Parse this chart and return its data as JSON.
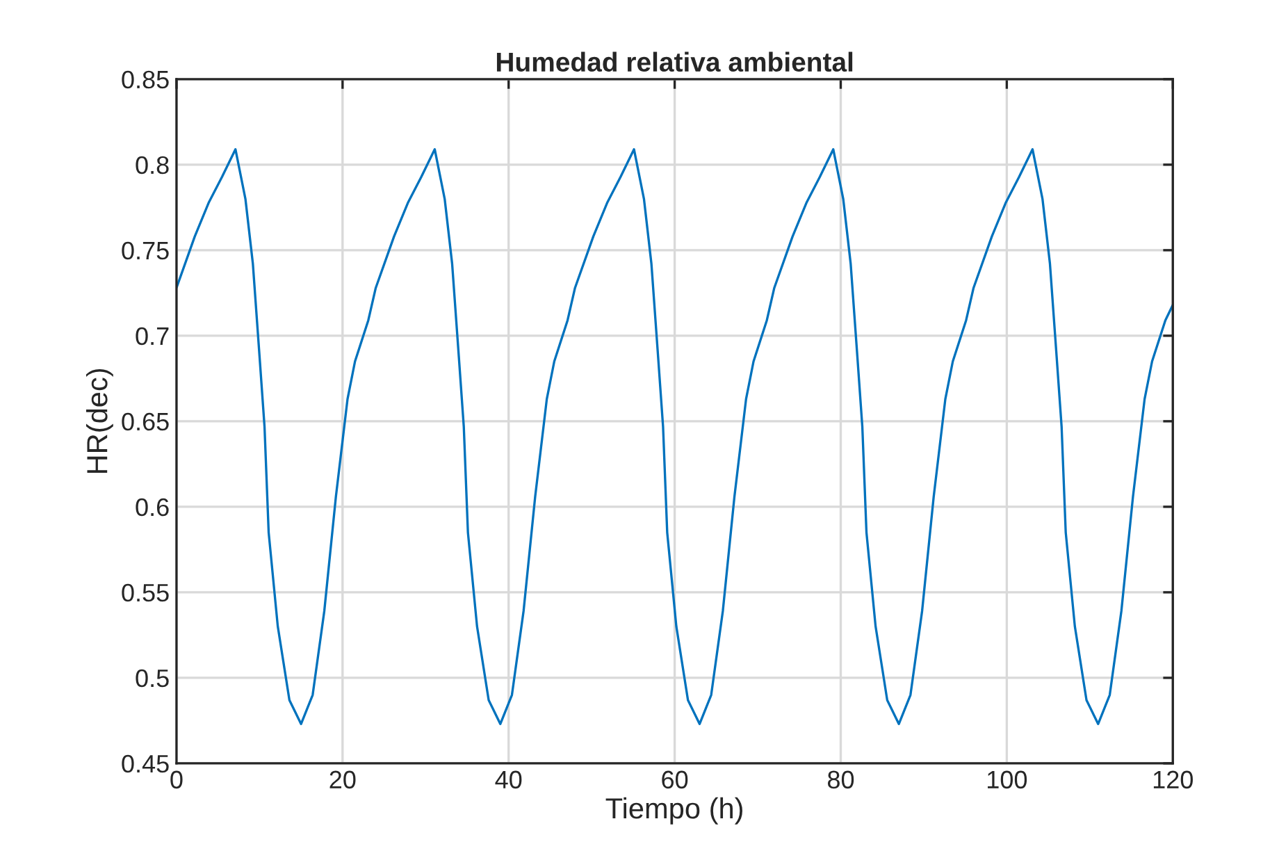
{
  "chart_data": {
    "type": "line",
    "title": "Humedad relativa ambiental",
    "xlabel": "Tiempo (h)",
    "ylabel": "HR(dec)",
    "x": [
      0,
      2.2,
      3.9,
      5.5,
      7.1,
      8.3,
      9.2,
      10,
      10.6,
      11.1,
      12.2,
      13.6,
      15,
      16.4,
      17.8,
      19.2,
      20.6,
      21.5,
      23.1,
      24,
      26.2,
      27.9,
      29.5,
      31.1,
      32.3,
      33.2,
      34,
      34.6,
      35.1,
      36.2,
      37.6,
      39,
      40.4,
      41.8,
      43.2,
      44.6,
      45.5,
      47.1,
      48,
      50.2,
      51.9,
      53.5,
      55.1,
      56.3,
      57.2,
      58,
      58.6,
      59.1,
      60.2,
      61.6,
      63,
      64.4,
      65.8,
      67.2,
      68.6,
      69.5,
      71.1,
      72,
      74.2,
      75.9,
      77.5,
      79.1,
      80.3,
      81.2,
      82,
      82.6,
      83.1,
      84.2,
      85.6,
      87,
      88.4,
      89.8,
      91.2,
      92.6,
      93.5,
      95.1,
      96,
      98.2,
      99.9,
      101.5,
      103.1,
      104.3,
      105.2,
      106,
      106.6,
      107.1,
      108.2,
      109.6,
      111,
      112.4,
      113.8,
      115.2,
      116.6,
      117.5,
      119.1,
      120
    ],
    "series": [
      {
        "color": "#0072bd",
        "values": [
          0.728,
          0.758,
          0.778,
          0.793,
          0.809,
          0.78,
          0.742,
          0.688,
          0.647,
          0.585,
          0.53,
          0.487,
          0.473,
          0.49,
          0.539,
          0.606,
          0.663,
          0.685,
          0.709,
          0.728,
          0.758,
          0.778,
          0.793,
          0.809,
          0.78,
          0.742,
          0.688,
          0.647,
          0.585,
          0.53,
          0.487,
          0.473,
          0.49,
          0.539,
          0.606,
          0.663,
          0.685,
          0.709,
          0.728,
          0.758,
          0.778,
          0.793,
          0.809,
          0.78,
          0.742,
          0.688,
          0.647,
          0.585,
          0.53,
          0.487,
          0.473,
          0.49,
          0.539,
          0.606,
          0.663,
          0.685,
          0.709,
          0.728,
          0.758,
          0.778,
          0.793,
          0.809,
          0.78,
          0.742,
          0.688,
          0.647,
          0.585,
          0.53,
          0.487,
          0.473,
          0.49,
          0.539,
          0.606,
          0.663,
          0.685,
          0.709,
          0.728,
          0.758,
          0.778,
          0.793,
          0.809,
          0.78,
          0.742,
          0.688,
          0.647,
          0.585,
          0.53,
          0.487,
          0.473,
          0.49,
          0.539,
          0.606,
          0.663,
          0.685,
          0.709,
          0.718
        ]
      }
    ],
    "xlim": [
      0,
      120
    ],
    "xticks": [
      0,
      20,
      40,
      60,
      80,
      100,
      120
    ],
    "ylim": [
      0.45,
      0.85
    ],
    "yticks": [
      0.45,
      0.5,
      0.55,
      0.6,
      0.65,
      0.7,
      0.75,
      0.8,
      0.85
    ],
    "grid": true
  }
}
